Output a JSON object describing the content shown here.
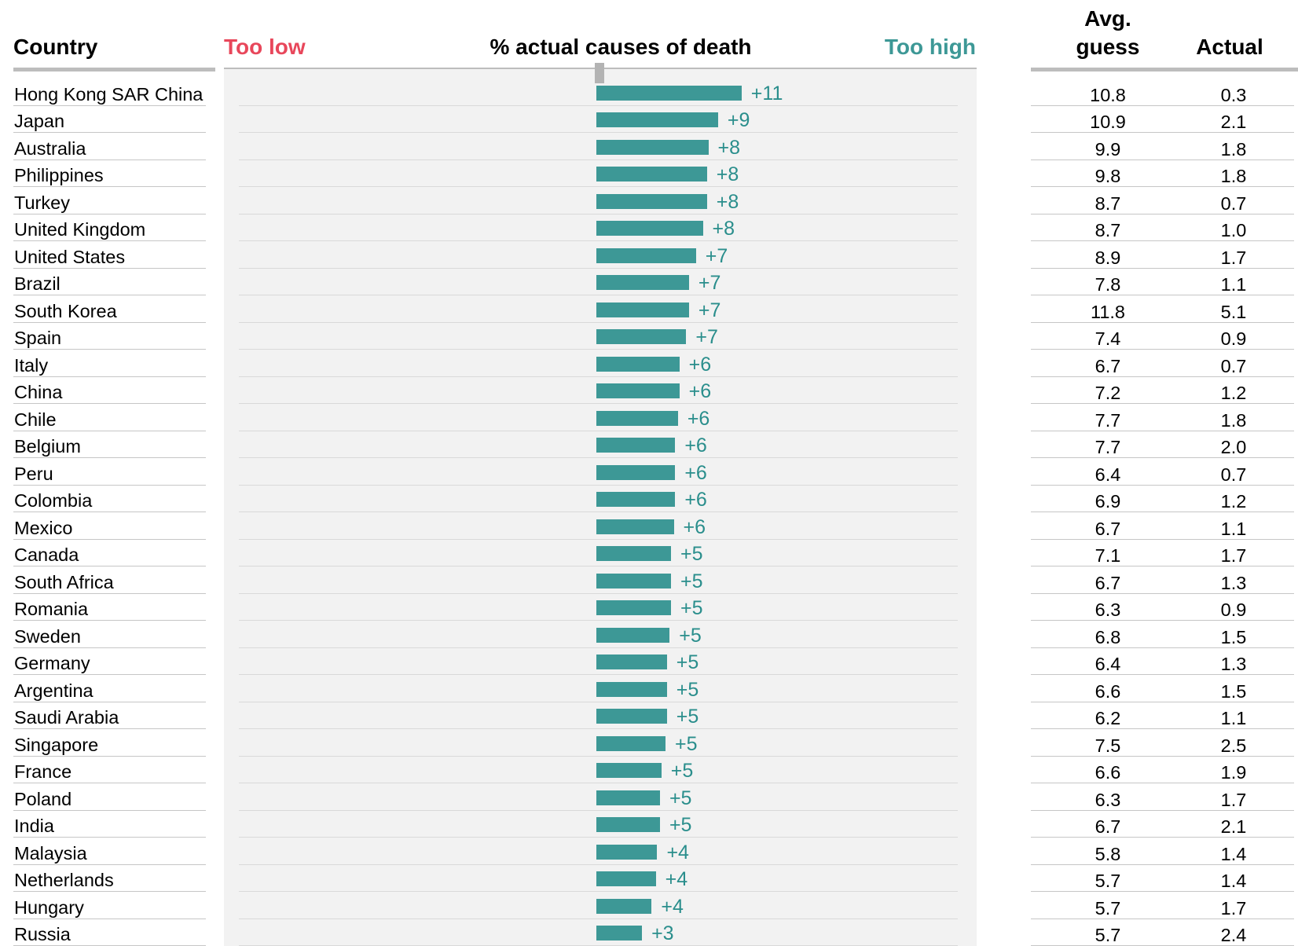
{
  "headers": {
    "country": "Country",
    "too_low": "Too low",
    "measure": "% actual causes of death",
    "too_high": "Too high",
    "avg_guess_line1": "Avg.",
    "avg_guess_line2": "guess",
    "actual": "Actual"
  },
  "colors": {
    "too_low": "#e8475b",
    "too_high": "#3d9896",
    "bar": "#3d9896",
    "value_label": "#2a8e8c",
    "plot_background": "#f2f2f2"
  },
  "chart_data": {
    "type": "bar",
    "orientation": "horizontal",
    "title": "% actual causes of death",
    "xlim": [
      -11,
      11
    ],
    "categories": [
      "Hong Kong SAR China",
      "Japan",
      "Australia",
      "Philippines",
      "Turkey",
      "United Kingdom",
      "United States",
      "Brazil",
      "South Korea",
      "Spain",
      "Italy",
      "China",
      "Chile",
      "Belgium",
      "Peru",
      "Colombia",
      "Mexico",
      "Canada",
      "South Africa",
      "Romania",
      "Sweden",
      "Germany",
      "Argentina",
      "Saudi Arabia",
      "Singapore",
      "France",
      "Poland",
      "India",
      "Malaysia",
      "Netherlands",
      "Hungary",
      "Russia"
    ],
    "values": [
      10.5,
      8.8,
      8.1,
      8.0,
      8.0,
      7.7,
      7.2,
      6.7,
      6.7,
      6.5,
      6.0,
      6.0,
      5.9,
      5.7,
      5.7,
      5.7,
      5.6,
      5.4,
      5.4,
      5.4,
      5.3,
      5.1,
      5.1,
      5.1,
      5.0,
      4.7,
      4.6,
      4.6,
      4.4,
      4.3,
      4.0,
      3.3
    ],
    "value_labels": [
      "+11",
      "+9",
      "+8",
      "+8",
      "+8",
      "+8",
      "+7",
      "+7",
      "+7",
      "+7",
      "+6",
      "+6",
      "+6",
      "+6",
      "+6",
      "+6",
      "+6",
      "+5",
      "+5",
      "+5",
      "+5",
      "+5",
      "+5",
      "+5",
      "+5",
      "+5",
      "+5",
      "+5",
      "+4",
      "+4",
      "+4",
      "+3"
    ],
    "avg_guess": [
      "10.8",
      "10.9",
      "9.9",
      "9.8",
      "8.7",
      "8.7",
      "8.9",
      "7.8",
      "11.8",
      "7.4",
      "6.7",
      "7.2",
      "7.7",
      "7.7",
      "6.4",
      "6.9",
      "6.7",
      "7.1",
      "6.7",
      "6.3",
      "6.8",
      "6.4",
      "6.6",
      "6.2",
      "7.5",
      "6.6",
      "6.3",
      "6.7",
      "5.8",
      "5.7",
      "5.7",
      "5.7"
    ],
    "actual": [
      "0.3",
      "2.1",
      "1.8",
      "1.8",
      "0.7",
      "1.0",
      "1.7",
      "1.1",
      "5.1",
      "0.9",
      "0.7",
      "1.2",
      "1.8",
      "2.0",
      "0.7",
      "1.2",
      "1.1",
      "1.7",
      "1.3",
      "0.9",
      "1.5",
      "1.3",
      "1.5",
      "1.1",
      "2.5",
      "1.9",
      "1.7",
      "2.1",
      "1.4",
      "1.4",
      "1.7",
      "2.4"
    ]
  }
}
